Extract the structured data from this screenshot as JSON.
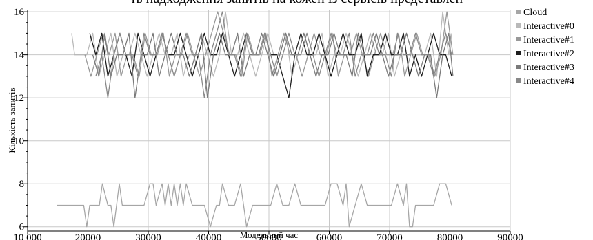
{
  "chart_data": {
    "type": "line",
    "title": "ть надходження запитів на кожен із сервісів представлен",
    "xlabel": "Модельний час",
    "ylabel": "Кількість запитів",
    "xlim": [
      10000,
      90000
    ],
    "ylim": [
      5.8,
      16.1
    ],
    "x_ticks": [
      10000,
      20000,
      30000,
      40000,
      50000,
      60000,
      70000,
      80000,
      90000
    ],
    "x_tick_labels": [
      "10 000",
      "20000",
      "30000",
      "40000",
      "50000",
      "60000",
      "70000",
      "80000",
      "90000"
    ],
    "y_ticks": [
      6,
      8,
      10,
      12,
      14,
      16
    ],
    "y_tick_labels": [
      "6",
      "8",
      "10",
      "12",
      "14",
      "16"
    ],
    "grid": true,
    "legend_position": "right",
    "series": [
      {
        "name": "Cloud",
        "color": "#a6a6a6",
        "x": [
          14800,
          19300,
          19800,
          20300,
          21400,
          21900,
          22400,
          23300,
          23800,
          24300,
          25200,
          25700,
          26300,
          27300,
          28300,
          29300,
          30300,
          30800,
          31300,
          32300,
          32800,
          33300,
          33800,
          34300,
          34800,
          35300,
          35800,
          36300,
          37300,
          38300,
          39300,
          40300,
          41300,
          41800,
          42300,
          43300,
          44300,
          45300,
          45800,
          46300,
          47300,
          48300,
          49300,
          50300,
          51300,
          52300,
          53300,
          54300,
          55300,
          56300,
          57300,
          58300,
          59300,
          60300,
          61300,
          62300,
          62800,
          63300,
          64300,
          65300,
          66300,
          66800,
          67300,
          68300,
          69300,
          70300,
          71300,
          72300,
          72800,
          73300,
          73800,
          74300,
          75300,
          76300,
          77300,
          78300,
          78800,
          79300,
          80300
        ],
        "values": [
          7,
          7,
          6,
          7,
          7,
          7,
          8,
          7,
          7,
          6,
          8,
          7,
          7,
          7,
          7,
          7,
          8,
          8,
          7,
          8,
          7,
          8,
          7,
          8,
          7,
          8,
          7,
          8,
          7,
          7,
          7,
          6,
          7,
          7,
          8,
          7,
          7,
          8,
          7,
          6,
          7,
          7,
          7,
          7,
          8,
          7,
          7,
          8,
          7,
          7,
          7,
          7,
          7,
          8,
          8,
          7,
          8,
          6,
          7,
          8,
          7,
          7,
          7,
          7,
          7,
          7,
          8,
          7,
          8,
          6,
          6,
          7,
          7,
          7,
          7,
          8,
          8,
          8,
          7
        ]
      },
      {
        "name": "Interactive#0",
        "color": "#b9b9b9",
        "x": [
          17300,
          17800,
          18800,
          19800,
          20800,
          21800,
          22800,
          23800,
          24800,
          25800,
          26800,
          27800,
          28800,
          29800,
          30800,
          31800,
          32800,
          33800,
          34800,
          35800,
          36800,
          37800,
          38800,
          39800,
          40800,
          41800,
          42800,
          43800,
          44800,
          45800,
          46800,
          47800,
          48800,
          49800,
          50800,
          51800,
          52800,
          53800,
          54800,
          55800,
          56800,
          57800,
          58800,
          59800,
          60800,
          61800,
          62800,
          63800,
          64800,
          65800,
          66800,
          67800,
          68800,
          69800,
          70800,
          71800,
          72800,
          73800,
          74800,
          75800,
          76800,
          77800,
          78800,
          79800,
          80300
        ],
        "values": [
          15,
          14,
          14,
          14,
          15,
          13,
          14,
          15,
          13,
          14,
          14,
          15,
          14,
          13,
          14,
          15,
          14,
          14,
          15,
          13,
          14,
          14,
          15,
          14,
          13,
          14,
          16,
          14,
          14,
          15,
          14,
          13,
          14,
          15,
          14,
          14,
          15,
          13,
          14,
          15,
          14,
          14,
          15,
          13,
          14,
          14,
          15,
          14,
          13,
          14,
          15,
          14,
          14,
          15,
          13,
          14,
          15,
          14,
          14,
          14,
          15,
          13,
          16,
          14,
          15
        ]
      },
      {
        "name": "Interactive#1",
        "color": "#989898",
        "x": [
          19500,
          20500,
          21500,
          22500,
          23500,
          24500,
          25500,
          26500,
          27500,
          28500,
          29500,
          30500,
          31500,
          32500,
          33500,
          34500,
          35500,
          36500,
          37500,
          38500,
          39500,
          40500,
          41500,
          42500,
          43500,
          44500,
          45500,
          46500,
          47500,
          48500,
          49500,
          50500,
          51500,
          52500,
          53500,
          54500,
          55500,
          56500,
          57500,
          58500,
          59500,
          60500,
          61500,
          62500,
          63500,
          64500,
          65500,
          66500,
          67500,
          68500,
          69500,
          70500,
          71500,
          72500,
          73500,
          74500,
          75500,
          76500,
          77500,
          78500,
          79500,
          80500
        ],
        "values": [
          14,
          13,
          14,
          15,
          14,
          15,
          13,
          14,
          14,
          13,
          15,
          14,
          14,
          15,
          13,
          14,
          14,
          15,
          14,
          13,
          14,
          15,
          16,
          15,
          14,
          14,
          13,
          15,
          14,
          14,
          15,
          13,
          14,
          15,
          14,
          14,
          13,
          14,
          15,
          14,
          14,
          15,
          13,
          14,
          14,
          15,
          14,
          13,
          14,
          15,
          14,
          14,
          15,
          13,
          14,
          15,
          14,
          14,
          13,
          14,
          16,
          14
        ]
      },
      {
        "name": "Interactive#2",
        "color": "#1e1e1e",
        "x": [
          20300,
          21300,
          22300,
          23300,
          24300,
          25300,
          26300,
          27300,
          28300,
          29300,
          30300,
          31300,
          32300,
          33300,
          34300,
          35300,
          36300,
          37300,
          38300,
          39300,
          40300,
          41300,
          42300,
          43300,
          44300,
          45300,
          46300,
          47300,
          48300,
          49300,
          50300,
          51300,
          52300,
          53300,
          54300,
          55300,
          56300,
          57300,
          58300,
          59300,
          60300,
          61300,
          62300,
          63300,
          64300,
          65300,
          66300,
          67300,
          68300,
          69300,
          70300,
          71300,
          72300,
          73300,
          74300,
          75300,
          76300,
          77300,
          78300,
          79300,
          80300
        ],
        "values": [
          15,
          14,
          15,
          13,
          14,
          15,
          14,
          13,
          15,
          14,
          13,
          14,
          15,
          14,
          14,
          15,
          14,
          13,
          14,
          15,
          14,
          14,
          15,
          14,
          13,
          14,
          15,
          14,
          14,
          15,
          14,
          14,
          13,
          12,
          14,
          15,
          14,
          14,
          15,
          14,
          13,
          14,
          15,
          14,
          14,
          15,
          13,
          14,
          14,
          15,
          14,
          14,
          15,
          13,
          14,
          13,
          14,
          15,
          14,
          14,
          13
        ]
      },
      {
        "name": "Interactive#3",
        "color": "#7a7a7a",
        "x": [
          20800,
          21800,
          22800,
          23800,
          24800,
          25800,
          26800,
          27800,
          28800,
          29800,
          30800,
          31800,
          32800,
          33800,
          34800,
          35800,
          36800,
          37800,
          38800,
          39800,
          40800,
          41800,
          42800,
          43800,
          44800,
          45800,
          46800,
          47800,
          48800,
          49800,
          50800,
          51800,
          52800,
          53800,
          54800,
          55800,
          56800,
          57800,
          58800,
          59800,
          60800,
          61800,
          62800,
          63800,
          64800,
          65800,
          66800,
          67800,
          68800,
          69800,
          70800,
          71800,
          72800,
          73800,
          74800,
          75800,
          76800,
          77800,
          78800,
          79800,
          80500
        ],
        "values": [
          14,
          13,
          15,
          13,
          14,
          14,
          15,
          12,
          14,
          14,
          15,
          13,
          14,
          15,
          14,
          14,
          13,
          14,
          15,
          12,
          14,
          15,
          14,
          14,
          15,
          13,
          14,
          14,
          15,
          14,
          13,
          14,
          15,
          14,
          14,
          15,
          14,
          13,
          14,
          14,
          15,
          14,
          14,
          13,
          15,
          14,
          14,
          15,
          14,
          13,
          14,
          14,
          15,
          14,
          13,
          14,
          14,
          12,
          14,
          15,
          13
        ]
      },
      {
        "name": "Interactive#4",
        "color": "#888888",
        "x": [
          21300,
          22300,
          23300,
          24300,
          25300,
          26300,
          27300,
          28300,
          29300,
          30300,
          31300,
          32300,
          33300,
          34300,
          35300,
          36300,
          37300,
          38300,
          39300,
          40300,
          41300,
          42300,
          43300,
          44300,
          45300,
          46300,
          47300,
          48300,
          49300,
          50300,
          51300,
          52300,
          53300,
          54300,
          55300,
          56300,
          57300,
          58300,
          59300,
          60300,
          61300,
          62300,
          63300,
          64300,
          65300,
          66300,
          67300,
          68300,
          69300,
          70300,
          71300,
          72300,
          73300,
          74300,
          75300,
          76300,
          77300,
          78300,
          79300,
          80300
        ],
        "values": [
          13,
          14,
          12,
          14,
          15,
          14,
          14,
          13,
          15,
          14,
          14,
          15,
          14,
          13,
          14,
          15,
          14,
          14,
          12,
          14,
          15,
          16,
          14,
          14,
          13,
          15,
          14,
          14,
          15,
          14,
          13,
          14,
          15,
          14,
          14,
          15,
          14,
          13,
          14,
          15,
          14,
          14,
          15,
          13,
          14,
          14,
          15,
          14,
          14,
          13,
          15,
          14,
          14,
          15,
          14,
          14,
          13,
          14,
          15,
          14
        ]
      }
    ]
  }
}
